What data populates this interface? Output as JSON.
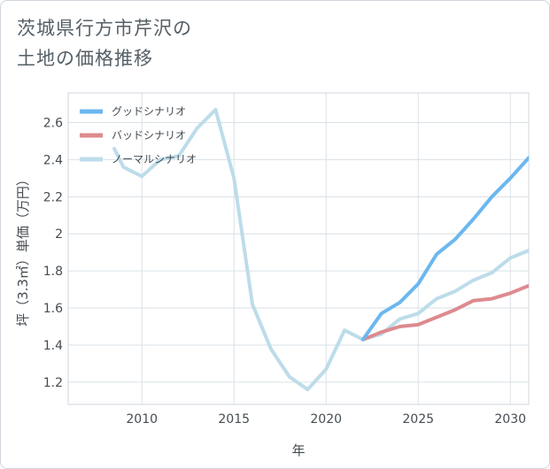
{
  "title": "茨城県行方市芹沢の\n土地の価格推移",
  "chart_data": {
    "type": "line",
    "xlabel": "年",
    "ylabel": "坪（3.3㎡）単価（万円）",
    "xlim": [
      2006,
      2031
    ],
    "ylim": [
      1.08,
      2.76
    ],
    "xticks": [
      2010,
      2015,
      2020,
      2025,
      2030
    ],
    "yticks": [
      1.2,
      1.4,
      1.6,
      1.8,
      2,
      2.2,
      2.4,
      2.6
    ],
    "ytick_labels": [
      "1.2",
      "1.4",
      "1.6",
      "1.8",
      "2",
      "2.2",
      "2.4",
      "2.6"
    ],
    "grid": true,
    "legend_position": "top-left",
    "series": [
      {
        "name": "グッドシナリオ",
        "color": "#6bb7ef",
        "x": [
          2022,
          2023,
          2024,
          2025,
          2026,
          2027,
          2028,
          2029,
          2030,
          2031
        ],
        "y": [
          1.43,
          1.57,
          1.63,
          1.73,
          1.89,
          1.97,
          2.08,
          2.2,
          2.3,
          2.41
        ]
      },
      {
        "name": "バッドシナリオ",
        "color": "#dd8a8f",
        "x": [
          2022,
          2023,
          2024,
          2025,
          2026,
          2027,
          2028,
          2029,
          2030,
          2031
        ],
        "y": [
          1.43,
          1.47,
          1.5,
          1.51,
          1.55,
          1.59,
          1.64,
          1.65,
          1.68,
          1.72
        ]
      },
      {
        "name": "ノーマルシナリオ",
        "color": "#bddcea",
        "x": [
          2008.5,
          2009,
          2010,
          2011,
          2012,
          2013,
          2014,
          2015,
          2016,
          2017,
          2018,
          2019,
          2020,
          2021,
          2022,
          2023,
          2024,
          2025,
          2026,
          2027,
          2028,
          2029,
          2030,
          2031
        ],
        "y": [
          2.46,
          2.36,
          2.31,
          2.4,
          2.42,
          2.57,
          2.67,
          2.3,
          1.62,
          1.38,
          1.23,
          1.16,
          1.27,
          1.48,
          1.43,
          1.46,
          1.54,
          1.57,
          1.65,
          1.69,
          1.75,
          1.79,
          1.87,
          1.91
        ]
      }
    ]
  }
}
